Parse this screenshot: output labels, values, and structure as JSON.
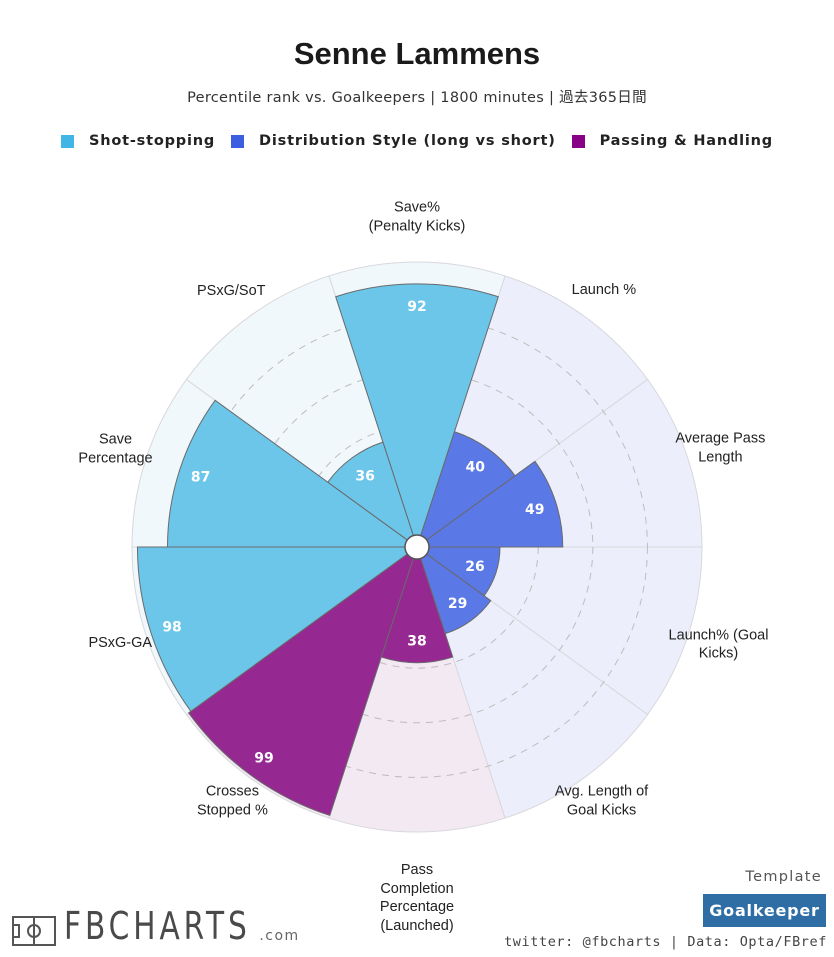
{
  "header": {
    "title": "Senne Lammens",
    "subtitle": "Percentile rank vs. Goalkeepers | 1800 minutes | 過去365日間"
  },
  "legend": [
    {
      "label": "Shot-stopping",
      "color": "#41b6e6"
    },
    {
      "label": "Distribution Style (long vs short)",
      "color": "#3b5fe0"
    },
    {
      "label": "Passing & Handling",
      "color": "#880085"
    }
  ],
  "chart_data": {
    "type": "polar-bar",
    "range": [
      0,
      100
    ],
    "categories": [
      {
        "label": "Save%\n(Penalty Kicks)",
        "value": 92,
        "group": "Shot-stopping"
      },
      {
        "label": "Launch %",
        "value": 40,
        "group": "Distribution Style (long vs short)"
      },
      {
        "label": "Average Pass\nLength",
        "value": 49,
        "group": "Distribution Style (long vs short)"
      },
      {
        "label": "Launch% (Goal\nKicks)",
        "value": 26,
        "group": "Distribution Style (long vs short)"
      },
      {
        "label": "Avg. Length of\nGoal Kicks",
        "value": 29,
        "group": "Distribution Style (long vs short)"
      },
      {
        "label": "Pass\nCompletion\nPercentage\n(Launched)",
        "value": 38,
        "group": "Passing & Handling"
      },
      {
        "label": "Crosses\nStopped %",
        "value": 99,
        "group": "Passing & Handling"
      },
      {
        "label": "PSxG-GA",
        "value": 98,
        "group": "Shot-stopping"
      },
      {
        "label": "Save\nPercentage",
        "value": 87,
        "group": "Shot-stopping"
      },
      {
        "label": "PSxG/SoT",
        "value": 36,
        "group": "Shot-stopping"
      }
    ],
    "group_colors": {
      "Shot-stopping": {
        "fill": "#6cc6ea",
        "bg": "#f0f8fc"
      },
      "Distribution Style (long vs short)": {
        "fill": "#5a78e6",
        "bg": "#eceffb"
      },
      "Passing & Handling": {
        "fill": "#962891",
        "bg": "#f3e9f3"
      }
    }
  },
  "footer": {
    "template_label": "Template",
    "template_value": "Goalkeeper",
    "credit": "twitter: @fbcharts | Data: Opta/FBref",
    "logo": "FBCHARTS",
    "logo_suffix": ".com"
  }
}
